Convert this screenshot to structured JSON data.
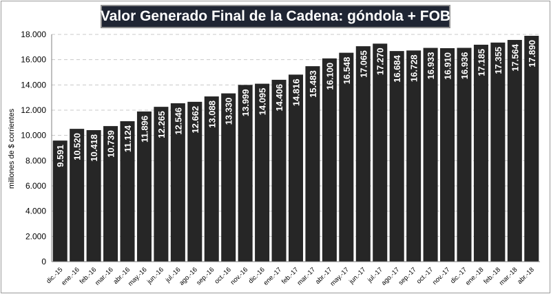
{
  "chart_data": {
    "type": "bar",
    "title": "Valor Generado Final de la Cadena: góndola + FOB",
    "ylabel": "millones de $ corrientes",
    "xlabel": "",
    "ylim": [
      0,
      18000
    ],
    "yticks": [
      "0",
      "2.000",
      "4.000",
      "6.000",
      "8.000",
      "10.000",
      "12.000",
      "14.000",
      "16.000",
      "18.000"
    ],
    "ytick_values": [
      0,
      2000,
      4000,
      6000,
      8000,
      10000,
      12000,
      14000,
      16000,
      18000
    ],
    "grid": true,
    "legend": "none",
    "bar_color": "#262626",
    "title_background": "#1f2533",
    "categories": [
      "dic.-15",
      "ene.-16",
      "feb.-16",
      "mar.-16",
      "abr.-16",
      "may.-16",
      "jun.-16",
      "jul.-16",
      "ago.-16",
      "sep.-16",
      "oct.-16",
      "nov.-16",
      "dic.-16",
      "ene.-17",
      "feb.-17",
      "mar.-17",
      "abr.-17",
      "may.-17",
      "jun.-17",
      "jul.-17",
      "ago.-17",
      "sep.-17",
      "oct.-17",
      "nov.-17",
      "dic.-17",
      "ene.-18",
      "feb.-18",
      "mar.-18",
      "abr.-18"
    ],
    "values": [
      9591,
      10520,
      10418,
      10739,
      11124,
      11896,
      12265,
      12546,
      12662,
      13088,
      13330,
      13999,
      14095,
      14406,
      14816,
      15483,
      16100,
      16548,
      17065,
      17270,
      16684,
      16728,
      16933,
      16910,
      16936,
      17185,
      17355,
      17564,
      17890
    ],
    "data_labels": [
      "9.591",
      "10.520",
      "10.418",
      "10.739",
      "11.124",
      "11.896",
      "12.265",
      "12.546",
      "12.662",
      "13.088",
      "13.330",
      "13.999",
      "14.095",
      "14.406",
      "14.816",
      "15.483",
      "16.100",
      "16.548",
      "17.065",
      "17.270",
      "16.684",
      "16.728",
      "16.933",
      "16.910",
      "16.936",
      "17.185",
      "17.355",
      "17.564",
      "17.890"
    ]
  }
}
